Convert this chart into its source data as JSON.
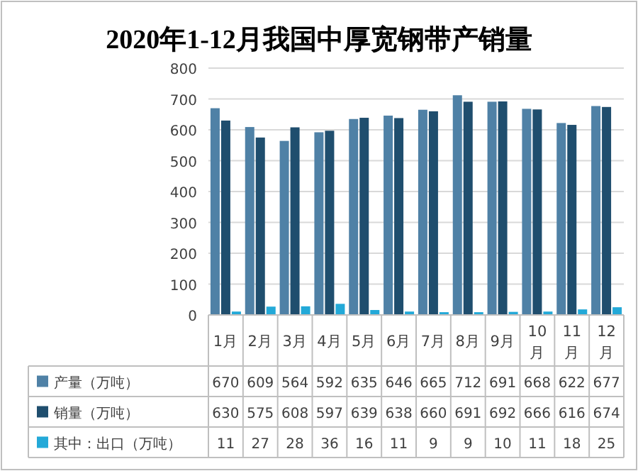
{
  "chart_data": {
    "type": "bar",
    "title": "2020年1-12月我国中厚宽钢带产销量",
    "categories": [
      "1月",
      "2月",
      "3月",
      "4月",
      "5月",
      "6月",
      "7月",
      "8月",
      "9月",
      "10月",
      "11月",
      "12月"
    ],
    "series": [
      {
        "name": "产量（万吨）",
        "color": "#4f81a6",
        "values": [
          670,
          609,
          564,
          592,
          635,
          646,
          665,
          712,
          691,
          668,
          622,
          677
        ]
      },
      {
        "name": "销量（万吨）",
        "color": "#1f4e6e",
        "values": [
          630,
          575,
          608,
          597,
          639,
          638,
          660,
          691,
          692,
          666,
          616,
          674
        ]
      },
      {
        "name": "其中：出口（万吨）",
        "color": "#23a9d8",
        "values": [
          11,
          27,
          28,
          36,
          16,
          11,
          9,
          9,
          10,
          11,
          18,
          25
        ]
      }
    ],
    "ylim": [
      0,
      800
    ],
    "yticks": [
      0,
      100,
      200,
      300,
      400,
      500,
      600,
      700,
      800
    ],
    "grid": "y",
    "legend": "bottom",
    "data_labels": true
  }
}
